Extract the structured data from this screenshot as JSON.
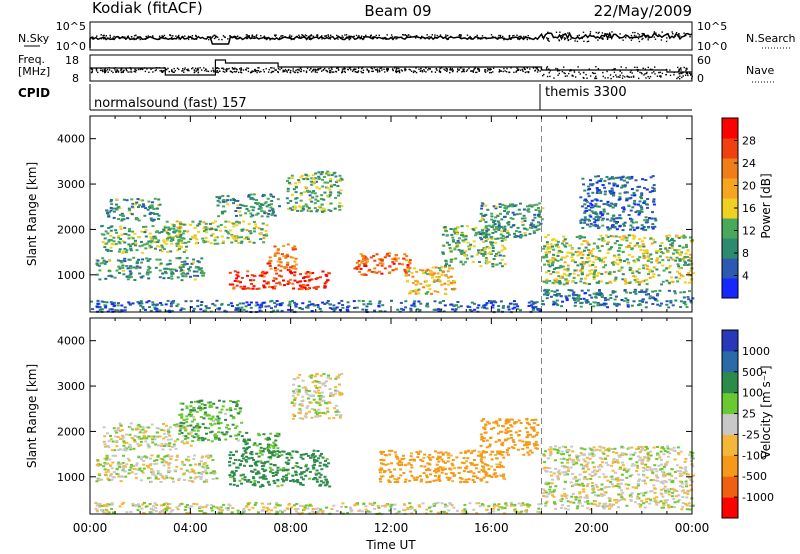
{
  "header": {
    "station": "Kodiak (fitACF)",
    "beam": "Beam 09",
    "date": "22/May/2009"
  },
  "panels": {
    "nsky": {
      "left_label": "N.Sky",
      "right_label": "N.Search",
      "left_ticks": [
        "10^5",
        "10^0"
      ],
      "right_ticks": [
        "10^5",
        "10^0"
      ]
    },
    "freq": {
      "left_label_1": "Freq.",
      "left_label_2": "[MHz]",
      "left_ticks": [
        "18",
        "8"
      ],
      "right_label": "Nave",
      "right_ticks": [
        "60",
        "0"
      ]
    },
    "cpid": {
      "label": "CPID",
      "modes": [
        {
          "name": "normalsound (fast) 157"
        },
        {
          "name": "themis 3300"
        }
      ]
    }
  },
  "colors": {
    "velocity_bins": [
      "#2838b8",
      "#2a6aa6",
      "#2e8a4a",
      "#6ac830",
      "#c8c8c8",
      "#f5b73a",
      "#f59a18",
      "#f06010",
      "#ff0000"
    ],
    "power_bins": [
      "#1428ff",
      "#2c5ab0",
      "#2e8a6e",
      "#4aa85a",
      "#f0d020",
      "#f5a520",
      "#f07e18",
      "#f04010",
      "#ff0000"
    ]
  },
  "chart_data": [
    {
      "type": "heatmap",
      "name": "power",
      "xlabel": "Time UT",
      "ylabel": "Slant Range [km]",
      "xlim": [
        0,
        24
      ],
      "ylim": [
        180,
        4500
      ],
      "yticks": [
        "1000",
        "2000",
        "3000",
        "4000"
      ],
      "colorbar": {
        "label": "Power [dB]",
        "range": [
          0,
          32
        ],
        "ticks": [
          "4",
          "8",
          "12",
          "16",
          "20",
          "24",
          "28"
        ]
      },
      "mode_change_hour": 18.0,
      "regions": [
        {
          "t0": 0.2,
          "t1": 4.5,
          "r0": 900,
          "r1": 1400,
          "value": 10
        },
        {
          "t0": 0.4,
          "t1": 3.8,
          "r0": 1500,
          "r1": 2100,
          "value": 12
        },
        {
          "t0": 0.6,
          "t1": 2.8,
          "r0": 2200,
          "r1": 2700,
          "value": 10
        },
        {
          "t0": 3.0,
          "t1": 7.0,
          "r0": 1700,
          "r1": 2200,
          "value": 14
        },
        {
          "t0": 5.0,
          "t1": 7.5,
          "r0": 2300,
          "r1": 2800,
          "value": 10
        },
        {
          "t0": 5.5,
          "t1": 9.5,
          "r0": 700,
          "r1": 1100,
          "value": 28
        },
        {
          "t0": 7.0,
          "t1": 8.2,
          "r0": 1100,
          "r1": 1700,
          "value": 24
        },
        {
          "t0": 7.8,
          "t1": 10.0,
          "r0": 2400,
          "r1": 3300,
          "value": 12
        },
        {
          "t0": 10.5,
          "t1": 12.8,
          "r0": 1000,
          "r1": 1500,
          "value": 24
        },
        {
          "t0": 12.5,
          "t1": 14.5,
          "r0": 600,
          "r1": 1200,
          "value": 18
        },
        {
          "t0": 14.0,
          "t1": 16.5,
          "r0": 1200,
          "r1": 2100,
          "value": 12
        },
        {
          "t0": 15.5,
          "t1": 18.0,
          "r0": 1800,
          "r1": 2600,
          "value": 10
        },
        {
          "t0": 18.0,
          "t1": 24.0,
          "r0": 800,
          "r1": 1900,
          "value": 14
        },
        {
          "t0": 18.0,
          "t1": 24.0,
          "r0": 300,
          "r1": 700,
          "value": 8
        },
        {
          "t0": 19.5,
          "t1": 22.5,
          "r0": 2000,
          "r1": 3200,
          "value": 6
        },
        {
          "t0": 0.0,
          "t1": 18.0,
          "r0": 200,
          "r1": 450,
          "value": 6
        }
      ]
    },
    {
      "type": "heatmap",
      "name": "velocity",
      "xlabel": "Time UT",
      "ylabel": "Slant Range [km]",
      "xlim": [
        0,
        24
      ],
      "ylim": [
        180,
        4500
      ],
      "xticks": [
        "00:00",
        "04:00",
        "08:00",
        "12:00",
        "16:00",
        "20:00",
        "00:00"
      ],
      "yticks": [
        "1000",
        "2000",
        "3000",
        "4000"
      ],
      "colorbar": {
        "label": "Velocity [m s⁻¹]",
        "ticks": [
          "-1000",
          "-500",
          "-100",
          "-25",
          "25",
          "100",
          "500",
          "1000"
        ]
      },
      "mode_change_hour": 18.0,
      "regions": [
        {
          "t0": 0.2,
          "t1": 5.0,
          "r0": 900,
          "r1": 1500,
          "value": 0
        },
        {
          "t0": 0.5,
          "t1": 4.0,
          "r0": 1600,
          "r1": 2200,
          "value": 0
        },
        {
          "t0": 3.5,
          "t1": 6.0,
          "r0": 1800,
          "r1": 2700,
          "value": 80
        },
        {
          "t0": 5.5,
          "t1": 9.5,
          "r0": 800,
          "r1": 1600,
          "value": 150
        },
        {
          "t0": 6.0,
          "t1": 7.5,
          "r0": 1500,
          "r1": 2000,
          "value": 120
        },
        {
          "t0": 8.0,
          "t1": 10.0,
          "r0": 2300,
          "r1": 3300,
          "value": 0
        },
        {
          "t0": 11.5,
          "t1": 16.5,
          "r0": 900,
          "r1": 1600,
          "value": -150
        },
        {
          "t0": 15.5,
          "t1": 17.8,
          "r0": 1500,
          "r1": 2300,
          "value": -200
        },
        {
          "t0": 18.0,
          "t1": 24.0,
          "r0": 300,
          "r1": 1700,
          "value": 0
        },
        {
          "t0": 0.0,
          "t1": 18.0,
          "r0": 200,
          "r1": 450,
          "value": 0
        }
      ]
    }
  ]
}
